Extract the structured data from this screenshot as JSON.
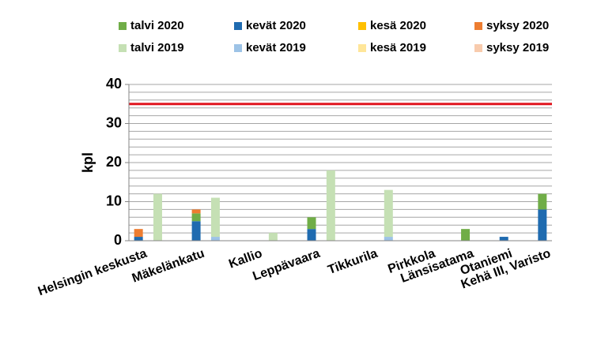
{
  "chart_data": {
    "type": "stacked-bar",
    "y_label": "kpl",
    "categories": [
      "Helsingin keskusta",
      null,
      null,
      "Mäkelänkatu",
      null,
      null,
      "Kallio",
      null,
      null,
      "Leppävaara",
      null,
      null,
      "Tikkurila",
      null,
      null,
      "Pirkkola",
      null,
      "Länsisatama",
      null,
      "Otaniemi",
      null,
      "Kehä III, Varisto"
    ],
    "series": [
      {
        "name": "talvi 2020",
        "color": "#70ad47",
        "values": [
          null,
          null,
          null,
          2,
          null,
          null,
          null,
          null,
          null,
          3,
          null,
          null,
          null,
          null,
          null,
          null,
          null,
          3,
          null,
          null,
          null,
          4
        ]
      },
      {
        "name": "kevät 2020",
        "color": "#1f6bb0",
        "values": [
          1,
          null,
          null,
          5,
          null,
          null,
          null,
          null,
          null,
          3,
          null,
          null,
          null,
          null,
          null,
          null,
          null,
          null,
          null,
          1,
          null,
          8
        ]
      },
      {
        "name": "kesä 2020",
        "color": "#ffc000",
        "values": [
          null,
          null,
          null,
          null,
          null,
          null,
          null,
          null,
          null,
          null,
          null,
          null,
          null,
          null,
          null,
          null,
          null,
          null,
          null,
          null,
          null,
          null
        ]
      },
      {
        "name": "syksy 2020",
        "color": "#ed7d31",
        "values": [
          2,
          null,
          null,
          1,
          null,
          null,
          null,
          null,
          null,
          null,
          null,
          null,
          null,
          null,
          null,
          null,
          null,
          null,
          null,
          null,
          null,
          null
        ]
      },
      {
        "name": "talvi 2019",
        "color": "#c5e0b4",
        "values": [
          null,
          12,
          null,
          null,
          10,
          null,
          null,
          2,
          null,
          null,
          18,
          null,
          null,
          12,
          null,
          null,
          null,
          null,
          null,
          null,
          null,
          null
        ]
      },
      {
        "name": "kevät 2019",
        "color": "#9dc3e6",
        "values": [
          null,
          null,
          null,
          null,
          1,
          null,
          null,
          null,
          null,
          null,
          null,
          null,
          null,
          1,
          null,
          null,
          null,
          null,
          null,
          null,
          null,
          null
        ]
      },
      {
        "name": "kesä 2019",
        "color": "#ffe699",
        "values": [
          null,
          null,
          null,
          null,
          null,
          null,
          null,
          null,
          null,
          null,
          null,
          null,
          null,
          null,
          null,
          null,
          null,
          null,
          null,
          null,
          null,
          null
        ]
      },
      {
        "name": "syksy 2019",
        "color": "#f8cbad",
        "values": [
          null,
          null,
          null,
          null,
          null,
          null,
          null,
          null,
          null,
          null,
          null,
          null,
          null,
          null,
          null,
          null,
          null,
          null,
          null,
          null,
          null,
          null
        ]
      }
    ],
    "ylim": [
      0,
      40
    ],
    "yticks": [
      0,
      10,
      20,
      30,
      40
    ],
    "grid_lines": [
      2,
      4,
      6,
      8,
      10,
      12,
      14,
      16,
      18,
      20,
      22,
      24,
      26,
      28,
      30,
      32,
      34,
      36,
      38,
      40
    ],
    "reference_line": {
      "value": 35,
      "color": "#e0141e"
    }
  }
}
